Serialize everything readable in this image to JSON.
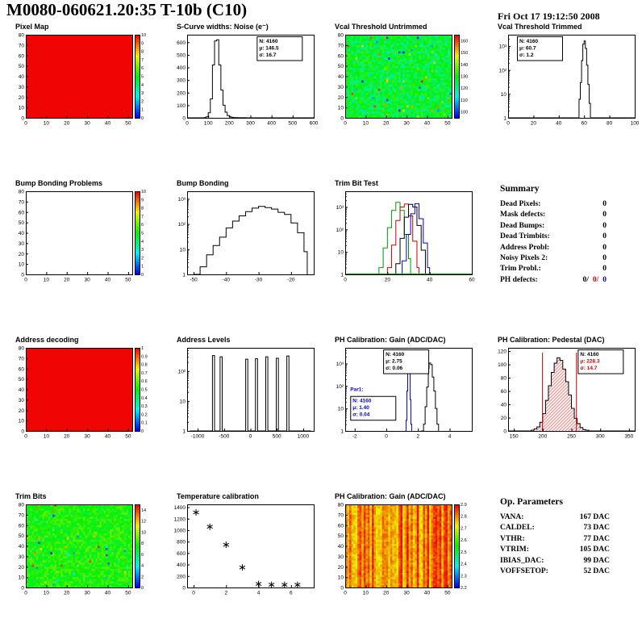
{
  "header": {
    "title": "M0080-060621.20:35 T-10b (C10)",
    "timestamp": "Fri Oct 17 19:12:50 2008"
  },
  "palette": {
    "red": "#cc0000",
    "blue": "#0000cc",
    "green": "#009900",
    "frame": "#000000"
  },
  "summary": {
    "title": "Summary",
    "rows": [
      {
        "label": "Dead Pixels:",
        "value": "0"
      },
      {
        "label": "Mask defects:",
        "value": "0"
      },
      {
        "label": "Dead Bumps:",
        "value": "0"
      },
      {
        "label": "Dead Trimbits:",
        "value": "0"
      },
      {
        "label": "Address Probl:",
        "value": "0"
      },
      {
        "label": "Noisy Pixels 2:",
        "value": "0"
      },
      {
        "label": "Trim Probl.:",
        "value": "0"
      }
    ],
    "ph_label": "PH defects:",
    "ph_values": [
      "0/",
      "0/",
      "0"
    ]
  },
  "op_parameters": {
    "title": "Op. Parameters",
    "rows": [
      {
        "label": "VANA:",
        "value": "167 DAC"
      },
      {
        "label": "CALDEL:",
        "value": "73 DAC"
      },
      {
        "label": "VTHR:",
        "value": "77 DAC"
      },
      {
        "label": "VTRIM:",
        "value": "105 DAC"
      },
      {
        "label": "IBIAS_DAC:",
        "value": "99 DAC"
      },
      {
        "label": "VOFFSETOP:",
        "value": "52 DAC"
      }
    ]
  },
  "chart_data": [
    {
      "id": "pixel-map",
      "type": "heatmap",
      "title": "Pixel Map",
      "pattern": "uniform",
      "value": 1,
      "xlim": [
        0,
        52
      ],
      "ylim": [
        0,
        80
      ],
      "xticks": [
        0,
        10,
        20,
        30,
        40,
        50
      ],
      "yticks": [
        0,
        10,
        20,
        30,
        40,
        50,
        60,
        70,
        80
      ],
      "zmin": 0,
      "zmax": 10,
      "zticks": [
        0,
        1,
        2,
        3,
        4,
        5,
        6,
        7,
        8,
        9,
        10
      ],
      "seed": 1
    },
    {
      "id": "scurve-noise",
      "type": "hist",
      "title": "S-Curve widths: Noise (e⁻)",
      "xlim": [
        0,
        600
      ],
      "ylim": [
        0,
        660
      ],
      "xticks": [
        0,
        100,
        200,
        300,
        400,
        500,
        600
      ],
      "yticks": [
        0,
        100,
        200,
        300,
        400,
        500,
        600
      ],
      "points": [
        [
          0,
          0
        ],
        [
          80,
          2
        ],
        [
          90,
          8
        ],
        [
          100,
          40
        ],
        [
          110,
          150
        ],
        [
          120,
          420
        ],
        [
          130,
          610
        ],
        [
          140,
          620
        ],
        [
          150,
          420
        ],
        [
          160,
          220
        ],
        [
          170,
          100
        ],
        [
          180,
          45
        ],
        [
          190,
          18
        ],
        [
          200,
          8
        ],
        [
          210,
          4
        ],
        [
          220,
          2
        ],
        [
          240,
          1
        ],
        [
          280,
          0
        ],
        [
          600,
          0
        ]
      ],
      "stats": [
        {
          "fx": 0.55,
          "fy": 0.02,
          "lines": [
            "N: 4160",
            "μ: 146.5",
            "σ: 16.7"
          ]
        }
      ]
    },
    {
      "id": "vcal-untrimmed",
      "type": "heatmap",
      "title": "Vcal Threshold Untrimmed",
      "pattern": "noise",
      "mean": 0.45,
      "spread": 0.11,
      "speckle": 0.04,
      "xlim": [
        0,
        52
      ],
      "ylim": [
        0,
        80
      ],
      "xticks": [
        0,
        10,
        20,
        30,
        40,
        50
      ],
      "yticks": [
        0,
        10,
        20,
        30,
        40,
        50,
        60,
        70,
        80
      ],
      "zmin": 95,
      "zmax": 165,
      "zticks": [
        100,
        110,
        120,
        130,
        140,
        150,
        160
      ],
      "seed": 7
    },
    {
      "id": "vcal-trimmed",
      "type": "hist",
      "title": "Vcal Threshold Trimmed",
      "logy": true,
      "xlim": [
        0,
        100
      ],
      "ylim": [
        1,
        3000
      ],
      "xticks": [
        0,
        20,
        40,
        60,
        80,
        100
      ],
      "points": [
        [
          0,
          0
        ],
        [
          54,
          1
        ],
        [
          56,
          6
        ],
        [
          57,
          30
        ],
        [
          58,
          250
        ],
        [
          59,
          1200
        ],
        [
          60,
          1650
        ],
        [
          61,
          800
        ],
        [
          62,
          160
        ],
        [
          63,
          25
        ],
        [
          64,
          4
        ],
        [
          65,
          1
        ],
        [
          66,
          0
        ],
        [
          100,
          0
        ]
      ],
      "stats": [
        {
          "fx": 0.07,
          "fy": 0.02,
          "lines": [
            "N: 4160",
            "μ: 60.7",
            "σ: 1.2"
          ]
        }
      ]
    },
    {
      "id": "bump-problems",
      "type": "heatmap",
      "title": "Bump Bonding Problems",
      "pattern": "empty",
      "xlim": [
        0,
        52
      ],
      "ylim": [
        0,
        80
      ],
      "xticks": [
        0,
        10,
        20,
        30,
        40,
        50
      ],
      "yticks": [
        0,
        10,
        20,
        30,
        40,
        50,
        60,
        70,
        80
      ],
      "zmin": 0,
      "zmax": 10,
      "zticks": [
        0,
        1,
        2,
        3,
        4,
        5,
        6,
        7,
        8,
        9,
        10
      ],
      "seed": 2
    },
    {
      "id": "bump-bonding",
      "type": "hist",
      "title": "Bump Bonding",
      "logy": true,
      "xlim": [
        -52,
        -13
      ],
      "ylim": [
        1,
        2000
      ],
      "xticks": [
        -50,
        -40,
        -30,
        -20
      ],
      "points": [
        [
          -50,
          0
        ],
        [
          -48,
          2
        ],
        [
          -46,
          6
        ],
        [
          -44,
          14
        ],
        [
          -42,
          30
        ],
        [
          -40,
          70
        ],
        [
          -38,
          130
        ],
        [
          -36,
          210
        ],
        [
          -34,
          310
        ],
        [
          -32,
          430
        ],
        [
          -30,
          500
        ],
        [
          -28,
          450
        ],
        [
          -26,
          390
        ],
        [
          -24,
          290
        ],
        [
          -22,
          240
        ],
        [
          -20,
          110
        ],
        [
          -18,
          45
        ],
        [
          -16,
          8
        ],
        [
          -15,
          0
        ]
      ]
    },
    {
      "id": "trim-bit-test",
      "type": "multihist",
      "title": "Trim Bit Test",
      "logy": true,
      "xlim": [
        0,
        60
      ],
      "ylim": [
        1,
        5000
      ],
      "xticks": [
        0,
        20,
        40,
        60
      ],
      "baseline": "#009900",
      "series": [
        {
          "name": "trim-bit-14",
          "color": "#009900",
          "points": [
            [
              14,
              0
            ],
            [
              16,
              2
            ],
            [
              18,
              15
            ],
            [
              20,
              120
            ],
            [
              22,
              700
            ],
            [
              24,
              1600
            ],
            [
              26,
              700
            ],
            [
              28,
              60
            ],
            [
              30,
              5
            ],
            [
              31,
              0
            ]
          ]
        },
        {
          "name": "trim-bit-13",
          "color": "#cc0000",
          "points": [
            [
              18,
              0
            ],
            [
              20,
              2
            ],
            [
              22,
              20
            ],
            [
              24,
              250
            ],
            [
              26,
              1000
            ],
            [
              28,
              1350
            ],
            [
              30,
              400
            ],
            [
              32,
              30
            ],
            [
              34,
              2
            ],
            [
              35,
              0
            ]
          ]
        },
        {
          "name": "trim-bit-11",
          "color": "#000000",
          "points": [
            [
              22,
              0
            ],
            [
              24,
              3
            ],
            [
              26,
              40
            ],
            [
              28,
              350
            ],
            [
              30,
              1300
            ],
            [
              32,
              1000
            ],
            [
              34,
              150
            ],
            [
              36,
              12
            ],
            [
              38,
              0
            ]
          ]
        },
        {
          "name": "trim-bit-7",
          "color": "#0000cc",
          "points": [
            [
              25,
              0
            ],
            [
              27,
              4
            ],
            [
              29,
              60
            ],
            [
              31,
              500
            ],
            [
              33,
              1400
            ],
            [
              35,
              300
            ],
            [
              37,
              25
            ],
            [
              39,
              2
            ],
            [
              40,
              0
            ]
          ]
        }
      ]
    },
    {
      "id": "address-decoding",
      "type": "heatmap",
      "title": "Address decoding",
      "pattern": "uniform",
      "value": 1,
      "xlim": [
        0,
        52
      ],
      "ylim": [
        0,
        80
      ],
      "xticks": [
        0,
        10,
        20,
        30,
        40,
        50
      ],
      "yticks": [
        0,
        10,
        20,
        30,
        40,
        50,
        60,
        70,
        80
      ],
      "zmin": 0,
      "zmax": 1,
      "zticks": [
        0,
        0.1,
        0.2,
        0.3,
        0.4,
        0.5,
        0.6,
        0.7,
        0.8,
        0.9,
        1
      ],
      "seed": 3
    },
    {
      "id": "address-levels",
      "type": "hist",
      "title": "Address Levels",
      "logy": true,
      "xlim": [
        -1200,
        1200
      ],
      "ylim": [
        1,
        600
      ],
      "xticks": [
        -1000,
        -500,
        0,
        500,
        1000
      ],
      "points": [
        [
          -1150,
          0
        ],
        [
          -720,
          330
        ],
        [
          -680,
          0
        ],
        [
          -575,
          300
        ],
        [
          -535,
          0
        ],
        [
          -90,
          250
        ],
        [
          -50,
          0
        ],
        [
          95,
          260
        ],
        [
          135,
          0
        ],
        [
          290,
          300
        ],
        [
          330,
          0
        ],
        [
          490,
          270
        ],
        [
          530,
          0
        ],
        [
          690,
          320
        ],
        [
          730,
          0
        ],
        [
          1150,
          0
        ]
      ]
    },
    {
      "id": "ph-gain-hist",
      "type": "multihist",
      "title": "PH Calibration: Gain (ADC/DAC)",
      "logy": true,
      "xlim": [
        -2.6,
        5.4
      ],
      "ylim": [
        1,
        5000
      ],
      "xticks": [
        -2,
        0,
        2,
        4
      ],
      "series": [
        {
          "name": "gain",
          "color": "#000000",
          "points": [
            [
              2.2,
              0
            ],
            [
              2.35,
              2
            ],
            [
              2.45,
              12
            ],
            [
              2.55,
              90
            ],
            [
              2.65,
              600
            ],
            [
              2.7,
              1050
            ],
            [
              2.8,
              900
            ],
            [
              2.9,
              250
            ],
            [
              3.0,
              60
            ],
            [
              3.1,
              10
            ],
            [
              3.2,
              2
            ],
            [
              3.3,
              0
            ]
          ]
        },
        {
          "name": "par1",
          "color": "#0000cc",
          "points": [
            [
              1.2,
              0
            ],
            [
              1.25,
              3
            ],
            [
              1.3,
              60
            ],
            [
              1.35,
              900
            ],
            [
              1.4,
              1500
            ],
            [
              1.45,
              400
            ],
            [
              1.5,
              25
            ],
            [
              1.55,
              2
            ],
            [
              1.6,
              0
            ]
          ]
        }
      ],
      "flabels": [
        {
          "fx": 0.04,
          "fy": 0.52,
          "text": "Par1:",
          "color": "#0000cc"
        }
      ],
      "stats": [
        {
          "fx": 0.3,
          "fy": 0.02,
          "lines": [
            "N: 4160",
            "μ: 2.75",
            "σ: 0.06"
          ]
        },
        {
          "fx": 0.04,
          "fy": 0.58,
          "lines": [
            "N: 4160",
            "μ: 1.40",
            "σ: 0.04"
          ],
          "colors": [
            "#0000cc",
            "#0000cc",
            "#0000cc"
          ]
        }
      ]
    },
    {
      "id": "ph-pedestal",
      "type": "hist",
      "title": "PH Calibration: Pedestal (DAC)",
      "xlim": [
        140,
        360
      ],
      "ylim": [
        0,
        125
      ],
      "xticks": [
        150,
        200,
        250,
        300,
        350
      ],
      "yticks": [
        0,
        20,
        40,
        60,
        80,
        100,
        120
      ],
      "fill": "hatch",
      "vlines": [
        {
          "x": 199,
          "color": "#cc0000"
        },
        {
          "x": 258,
          "color": "#cc0000"
        }
      ],
      "points": [
        [
          140,
          0
        ],
        [
          180,
          1
        ],
        [
          185,
          3
        ],
        [
          190,
          6
        ],
        [
          195,
          13
        ],
        [
          200,
          26
        ],
        [
          205,
          46
        ],
        [
          210,
          68
        ],
        [
          215,
          88
        ],
        [
          220,
          102
        ],
        [
          225,
          110
        ],
        [
          230,
          106
        ],
        [
          235,
          93
        ],
        [
          240,
          74
        ],
        [
          245,
          54
        ],
        [
          250,
          34
        ],
        [
          255,
          19
        ],
        [
          260,
          11
        ],
        [
          265,
          5
        ],
        [
          270,
          2
        ],
        [
          275,
          1
        ],
        [
          280,
          0
        ],
        [
          360,
          0
        ]
      ],
      "stats": [
        {
          "fx": 0.55,
          "fy": 0.02,
          "lines": [
            "N: 4160",
            "μ: 228.3",
            "σ: 14.7"
          ],
          "colors": [
            "#000000",
            "#cc0000",
            "#cc0000"
          ]
        }
      ]
    },
    {
      "id": "trim-bits",
      "type": "heatmap",
      "title": "Trim Bits",
      "pattern": "noise",
      "mean": 0.52,
      "spread": 0.08,
      "speckle": 0.03,
      "xlim": [
        0,
        52
      ],
      "ylim": [
        0,
        80
      ],
      "xticks": [
        0,
        10,
        20,
        30,
        40,
        50
      ],
      "yticks": [
        0,
        10,
        20,
        30,
        40,
        50,
        60,
        70,
        80
      ],
      "zmin": 0,
      "zmax": 15,
      "zticks": [
        0,
        2,
        4,
        6,
        8,
        10,
        12,
        14
      ],
      "seed": 11
    },
    {
      "id": "temperature-calibration",
      "type": "scatter",
      "title": "Temperature calibration",
      "xlim": [
        -0.4,
        7.4
      ],
      "ylim": [
        0,
        1450
      ],
      "xticks": [
        0,
        2,
        4,
        6
      ],
      "yticks": [
        0,
        200,
        400,
        600,
        800,
        1000,
        1200,
        1400
      ],
      "points": [
        [
          0.15,
          1310
        ],
        [
          1,
          1060
        ],
        [
          2,
          745
        ],
        [
          3,
          350
        ],
        [
          4,
          62
        ],
        [
          4.8,
          48
        ],
        [
          5.6,
          46
        ],
        [
          6.4,
          46
        ]
      ]
    },
    {
      "id": "ph-gain-map",
      "type": "heatmap",
      "title": "PH Calibration: Gain (ADC/DAC)",
      "pattern": "stripes",
      "xlim": [
        0,
        52
      ],
      "ylim": [
        0,
        80
      ],
      "xticks": [
        0,
        10,
        20,
        30,
        40,
        50
      ],
      "yticks": [
        0,
        10,
        20,
        30,
        40,
        50,
        60,
        70,
        80
      ],
      "zmin": 2.2,
      "zmax": 2.9,
      "zticks": [
        2.2,
        2.3,
        2.4,
        2.5,
        2.6,
        2.7,
        2.8,
        2.9
      ],
      "seed": 13
    }
  ]
}
